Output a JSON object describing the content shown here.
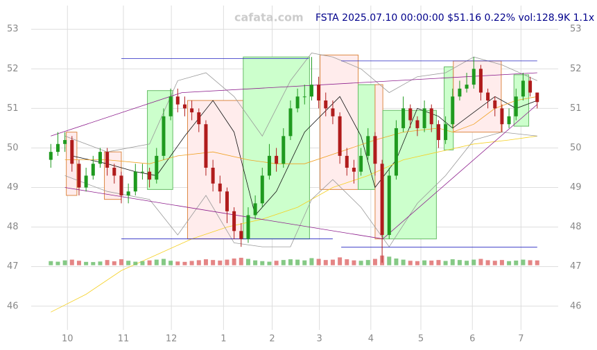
{
  "chart_data": {
    "type": "candlestick",
    "title": "FSTA 2025.07.10 00:00:00 $51.16 0.22% vol:128.9K 1.1x",
    "watermark": "cafata.com",
    "ylim": [
      45.4,
      53.6
    ],
    "yticks": [
      46,
      47,
      48,
      49,
      50,
      51,
      52,
      53
    ],
    "xlim": [
      -1.8,
      70.5
    ],
    "xticks": [
      {
        "value": 2.36,
        "label": "10"
      },
      {
        "value": 10.3,
        "label": "11"
      },
      {
        "value": 17.1,
        "label": "12"
      },
      {
        "value": 24.5,
        "label": "1"
      },
      {
        "value": 31.4,
        "label": "2"
      },
      {
        "value": 38.1,
        "label": "3"
      },
      {
        "value": 45.4,
        "label": "4"
      },
      {
        "value": 52.5,
        "label": "5"
      },
      {
        "value": 59.8,
        "label": "6"
      },
      {
        "value": 66.7,
        "label": "7"
      }
    ],
    "grid": true,
    "up_color": "#1f9a1f",
    "down_color": "#b01c1c",
    "open": [
      49.7,
      49.9,
      50.1,
      50.2,
      49.6,
      49.0,
      49.3,
      49.6,
      49.9,
      49.5,
      49.3,
      48.8,
      48.9,
      49.4,
      49.4,
      49.2,
      49.8,
      50.8,
      51.3,
      51.1,
      51.0,
      50.9,
      50.6,
      49.5,
      49.1,
      48.9,
      48.4,
      47.9,
      47.7,
      48.3,
      48.6,
      49.3,
      49.8,
      49.6,
      50.3,
      51.0,
      51.3,
      51.3,
      51.6,
      51.2,
      51.0,
      50.8,
      49.8,
      49.5,
      49.4,
      49.8,
      50.3,
      49.6,
      47.8,
      49.3,
      50.5,
      51.0,
      50.7,
      50.5,
      51.0,
      50.6,
      50.2,
      50.6,
      51.3,
      51.5,
      51.6,
      52.0,
      51.4,
      51.2,
      51.0,
      50.6,
      50.8,
      51.3,
      51.7,
      51.4
    ],
    "high": [
      50.1,
      50.4,
      50.4,
      50.3,
      49.7,
      49.5,
      49.8,
      50.0,
      50.0,
      49.6,
      49.4,
      49.1,
      49.6,
      49.6,
      49.5,
      50.0,
      51.0,
      51.5,
      51.5,
      51.3,
      51.2,
      51.0,
      50.7,
      49.7,
      49.3,
      49.0,
      48.5,
      48.1,
      48.5,
      48.8,
      49.5,
      50.1,
      50.0,
      50.5,
      51.2,
      51.5,
      51.6,
      52.3,
      51.8,
      51.4,
      51.2,
      50.9,
      50.0,
      49.7,
      50.0,
      50.5,
      50.4,
      49.7,
      49.5,
      50.7,
      51.3,
      51.1,
      50.8,
      51.2,
      51.1,
      50.7,
      50.8,
      51.5,
      51.7,
      51.9,
      52.3,
      52.1,
      51.5,
      51.3,
      51.1,
      51.0,
      51.5,
      51.9,
      51.8,
      51.4
    ],
    "low": [
      49.5,
      49.8,
      49.9,
      49.4,
      48.8,
      48.9,
      49.2,
      49.5,
      49.3,
      49.1,
      48.6,
      48.6,
      48.8,
      49.2,
      49.0,
      49.1,
      49.7,
      50.7,
      50.9,
      50.8,
      50.7,
      50.4,
      49.3,
      48.9,
      48.6,
      48.1,
      47.7,
      47.5,
      47.6,
      48.2,
      48.5,
      49.2,
      49.4,
      49.5,
      50.2,
      50.9,
      51.1,
      51.2,
      51.0,
      50.8,
      50.6,
      49.6,
      49.3,
      49.1,
      49.3,
      49.7,
      49.3,
      47.1,
      47.7,
      49.2,
      50.4,
      50.5,
      50.3,
      50.4,
      50.4,
      50.0,
      50.1,
      50.5,
      51.2,
      51.4,
      51.5,
      51.2,
      51.0,
      50.8,
      50.4,
      50.5,
      50.7,
      51.2,
      51.3,
      51.0
    ],
    "close": [
      49.9,
      50.1,
      50.2,
      49.6,
      49.0,
      49.3,
      49.6,
      49.9,
      49.5,
      49.3,
      48.8,
      48.9,
      49.4,
      49.4,
      49.2,
      49.8,
      50.8,
      51.3,
      51.1,
      51.0,
      50.9,
      50.6,
      49.5,
      49.1,
      48.9,
      48.4,
      47.9,
      47.7,
      48.3,
      48.6,
      49.3,
      49.8,
      49.6,
      50.3,
      51.0,
      51.3,
      51.3,
      51.6,
      51.2,
      51.0,
      50.8,
      49.8,
      49.5,
      49.4,
      49.8,
      50.3,
      49.6,
      47.8,
      49.3,
      50.5,
      51.0,
      50.7,
      50.5,
      51.0,
      50.6,
      50.2,
      50.6,
      51.3,
      51.5,
      51.6,
      52.0,
      51.4,
      51.2,
      51.0,
      50.6,
      50.8,
      51.3,
      51.7,
      51.4,
      51.16
    ],
    "volume": [
      110,
      95,
      130,
      150,
      120,
      90,
      85,
      100,
      140,
      105,
      160,
      120,
      95,
      110,
      130,
      150,
      170,
      120,
      100,
      90,
      115,
      135,
      160,
      140,
      125,
      150,
      180,
      200,
      170,
      130,
      110,
      95,
      120,
      140,
      160,
      150,
      130,
      190,
      170,
      140,
      150,
      210,
      160,
      130,
      120,
      140,
      170,
      260,
      230,
      180,
      150,
      120,
      110,
      130,
      125,
      140,
      115,
      160,
      140,
      120,
      150,
      170,
      135,
      120,
      140,
      110,
      125,
      150,
      135,
      128.9
    ],
    "lines": [
      {
        "name": "MA20",
        "color": "#111111",
        "x": [
          3,
          8,
          12,
          15,
          19,
          23,
          26,
          29,
          32,
          36,
          41,
          44,
          46,
          49,
          52,
          55,
          57,
          60,
          63,
          66,
          69
        ],
        "values": [
          49.8,
          49.6,
          49.4,
          49.3,
          50.3,
          51.2,
          50.4,
          48.3,
          48.9,
          50.4,
          51.3,
          50.3,
          49.0,
          49.7,
          51.0,
          50.8,
          50.5,
          50.9,
          51.3,
          51.0,
          51.2
        ]
      },
      {
        "name": "MA50",
        "color": "#f0a020",
        "x": [
          2,
          8,
          14,
          18,
          23,
          28,
          32,
          36,
          41,
          46,
          50,
          55,
          57,
          60,
          63,
          66,
          69
        ],
        "values": [
          49.7,
          49.7,
          49.6,
          49.8,
          49.9,
          49.7,
          49.6,
          49.6,
          49.9,
          50.2,
          50.4,
          50.5,
          50.4,
          50.6,
          51.0,
          51.2,
          51.3
        ]
      },
      {
        "name": "MA200",
        "color": "#f5d020",
        "x": [
          0,
          5,
          10,
          15,
          20,
          25,
          30,
          35,
          40,
          45,
          50,
          55,
          60,
          65,
          69
        ],
        "values": [
          45.85,
          46.3,
          46.9,
          47.3,
          47.7,
          48.0,
          48.2,
          48.5,
          49.0,
          49.3,
          49.7,
          49.9,
          50.1,
          50.2,
          50.3
        ]
      },
      {
        "name": "BB-upper",
        "color": "#999999",
        "x": [
          2,
          8,
          14,
          18,
          22,
          26,
          30,
          34,
          37,
          40,
          44,
          48,
          52,
          56,
          60,
          64,
          69
        ],
        "values": [
          50.3,
          49.9,
          50.1,
          51.7,
          51.9,
          51.3,
          50.3,
          51.7,
          52.4,
          52.3,
          52.0,
          51.4,
          51.8,
          51.9,
          52.3,
          52.1,
          51.7
        ]
      },
      {
        "name": "BB-lower",
        "color": "#999999",
        "x": [
          2,
          8,
          14,
          18,
          22,
          26,
          30,
          34,
          37,
          40,
          44,
          48,
          52,
          56,
          60,
          64,
          69
        ],
        "values": [
          49.3,
          48.9,
          48.7,
          47.8,
          48.8,
          47.6,
          47.5,
          47.5,
          48.7,
          49.2,
          48.5,
          47.5,
          48.6,
          49.3,
          50.2,
          50.4,
          50.3
        ]
      }
    ],
    "boxes": [
      {
        "kind": "down",
        "x0": 2.2,
        "x1": 3.7,
        "y0": 48.8,
        "y1": 50.4
      },
      {
        "kind": "down",
        "x0": 7.6,
        "x1": 10.0,
        "y0": 48.7,
        "y1": 49.9
      },
      {
        "kind": "up",
        "x0": 13.7,
        "x1": 17.3,
        "y0": 48.95,
        "y1": 51.45
      },
      {
        "kind": "down",
        "x0": 19.4,
        "x1": 27.3,
        "y0": 47.7,
        "y1": 51.2
      },
      {
        "kind": "up",
        "x0": 27.3,
        "x1": 36.7,
        "y0": 47.7,
        "y1": 52.3
      },
      {
        "kind": "down",
        "x0": 38.2,
        "x1": 43.6,
        "y0": 48.95,
        "y1": 52.35
      },
      {
        "kind": "up",
        "x0": 43.6,
        "x1": 46.0,
        "y0": 48.95,
        "y1": 51.6
      },
      {
        "kind": "down",
        "x0": 46.0,
        "x1": 47.1,
        "y0": 47.7,
        "y1": 51.6
      },
      {
        "kind": "up",
        "x0": 47.1,
        "x1": 54.7,
        "y0": 47.7,
        "y1": 50.95
      },
      {
        "kind": "up",
        "x0": 55.8,
        "x1": 57.1,
        "y0": 49.95,
        "y1": 52.05
      },
      {
        "kind": "down",
        "x0": 57.1,
        "x1": 63.9,
        "y0": 50.4,
        "y1": 52.2
      },
      {
        "kind": "up",
        "x0": 65.7,
        "x1": 67.8,
        "y0": 50.55,
        "y1": 51.85
      }
    ],
    "trendlines": [
      {
        "color": "#8b1a8b",
        "x": [
          0,
          18.6
        ],
        "values": [
          50.3,
          51.4
        ]
      },
      {
        "color": "#8b1a8b",
        "x": [
          18.6,
          69
        ],
        "values": [
          51.4,
          51.9
        ]
      },
      {
        "color": "#8b1a8b",
        "x": [
          2,
          47.1
        ],
        "values": [
          49.0,
          47.7
        ]
      },
      {
        "color": "#8b1a8b",
        "x": [
          47.1,
          69
        ],
        "values": [
          47.7,
          51.1
        ]
      },
      {
        "color": "#2020c0",
        "x": [
          10,
          36.6
        ],
        "values": [
          52.26,
          52.26
        ]
      },
      {
        "color": "#2020c0",
        "x": [
          10,
          40
        ],
        "values": [
          47.7,
          47.7
        ]
      },
      {
        "color": "#2020c0",
        "x": [
          41.2,
          69
        ],
        "values": [
          52.2,
          52.2
        ]
      },
      {
        "color": "#2020c0",
        "x": [
          41.2,
          69
        ],
        "values": [
          47.49,
          47.49
        ]
      }
    ]
  }
}
